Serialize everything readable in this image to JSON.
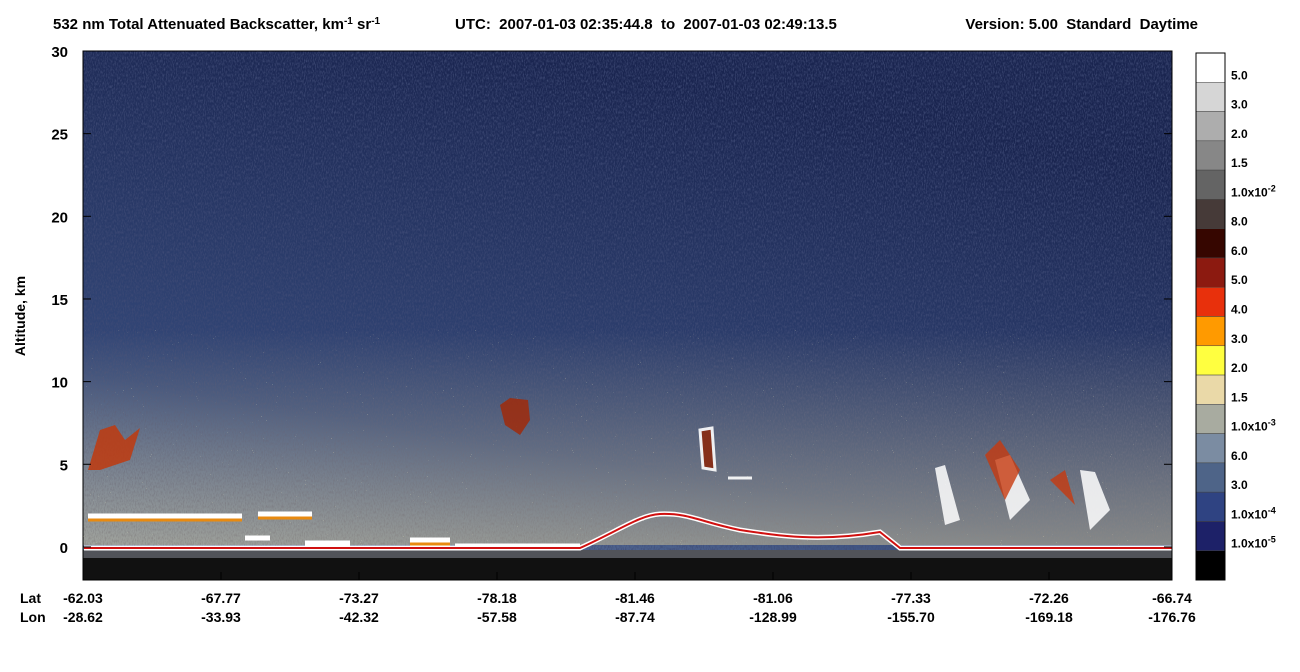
{
  "chart_data": {
    "type": "curtain",
    "title": [
      "532 nm Total Attenuated Backscatter, km",
      "-1",
      " sr",
      "-1"
    ],
    "utc": "UTC:  2007-01-03 02:35:44.8  to  2007-01-03 02:49:13.5",
    "version": "Version: 5.00  Standard  Daytime",
    "ylabel": "Altitude, km",
    "ylim": [
      -2,
      30
    ],
    "yticks": [
      0,
      5,
      10,
      15,
      20,
      25,
      30
    ],
    "x_rows": [
      {
        "name": "Lat",
        "labels": [
          "-62.03",
          "-67.77",
          "-73.27",
          "-78.18",
          "-81.46",
          "-81.06",
          "-77.33",
          "-72.26",
          "-66.74"
        ]
      },
      {
        "name": "Lon",
        "labels": [
          "-28.62",
          "-33.93",
          "-42.32",
          "-57.58",
          "-87.74",
          "-128.99",
          "-155.70",
          "-169.18",
          "-176.76"
        ]
      }
    ],
    "colorbar": [
      {
        "color": "#ffffff",
        "label": [
          "5.0"
        ]
      },
      {
        "color": "#d6d6d6",
        "label": [
          "3.0"
        ]
      },
      {
        "color": "#adadad",
        "label": [
          "2.0"
        ]
      },
      {
        "color": "#878787",
        "label": [
          "1.5"
        ]
      },
      {
        "color": "#646464",
        "label": [
          "1.0x10",
          "-2"
        ]
      },
      {
        "color": "#463a38",
        "label": [
          "8.0"
        ]
      },
      {
        "color": "#360600",
        "label": [
          "6.0"
        ]
      },
      {
        "color": "#8c1a10",
        "label": [
          "5.0"
        ]
      },
      {
        "color": "#e8300c",
        "label": [
          "4.0"
        ]
      },
      {
        "color": "#ff9a00",
        "label": [
          "3.0"
        ]
      },
      {
        "color": "#ffff40",
        "label": [
          "2.0"
        ]
      },
      {
        "color": "#ead9a8",
        "label": [
          "1.5"
        ]
      },
      {
        "color": "#a8aba0",
        "label": [
          "1.0x10",
          "-3"
        ]
      },
      {
        "color": "#7b8ca2",
        "label": [
          "6.0"
        ]
      },
      {
        "color": "#4e6488",
        "label": [
          "3.0"
        ]
      },
      {
        "color": "#2f4382",
        "label": [
          "1.0x10",
          "-4"
        ]
      },
      {
        "color": "#1d2168",
        "label": [
          "1.0x10",
          "-5"
        ]
      },
      {
        "color": "#000000",
        "label": null
      }
    ]
  }
}
